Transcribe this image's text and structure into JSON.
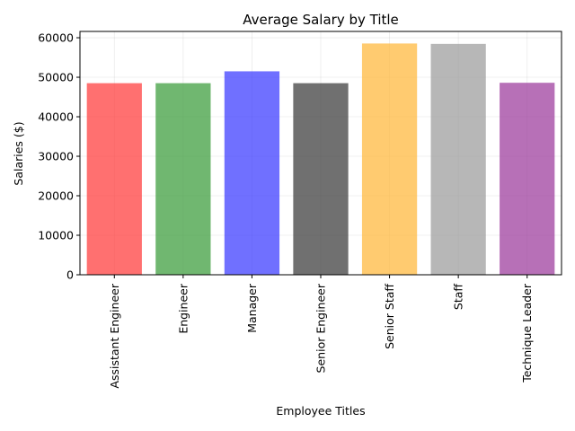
{
  "chart_data": {
    "type": "bar",
    "title": "Average Salary by Title",
    "xlabel": "Employee Titles",
    "ylabel": "Salaries ($)",
    "categories": [
      "Assistant Engineer",
      "Engineer",
      "Manager",
      "Senior Engineer",
      "Senior Staff",
      "Staff",
      "Technique Leader"
    ],
    "values": [
      48500,
      48500,
      51500,
      48500,
      58550,
      58450,
      48600
    ],
    "colors": [
      "#ff4040",
      "#409f40",
      "#4040ff",
      "#404040",
      "#ffb940",
      "#9f9f9f",
      "#9f409f"
    ],
    "ylim": [
      0,
      61600
    ],
    "yticks": [
      0,
      10000,
      20000,
      30000,
      40000,
      50000,
      60000
    ],
    "grid": true,
    "bar_opacity": 0.75
  }
}
